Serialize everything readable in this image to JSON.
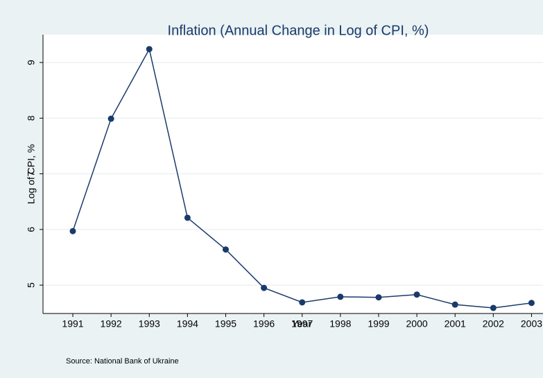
{
  "chart_data": {
    "type": "line",
    "title": "Inflation (Annual Change in Log of CPI, %)",
    "x_label": "Year",
    "y_label": "Log of CPI, %",
    "note": "Source: National Bank of Ukraine",
    "x": [
      1991,
      1992,
      1993,
      1994,
      1995,
      1996,
      1997,
      1998,
      1999,
      2000,
      2001,
      2002,
      2003
    ],
    "series": [
      {
        "color": "#1a3a6b",
        "values": [
          5.97,
          7.99,
          9.24,
          6.21,
          5.64,
          4.95,
          4.69,
          4.79,
          4.78,
          4.83,
          4.65,
          4.59,
          4.68
        ]
      }
    ],
    "xlim": [
      1990.22,
      2003.3
    ],
    "xticks": [
      1991,
      1992,
      1993,
      1994,
      1995,
      1996,
      1997,
      1998,
      1999,
      2000,
      2001,
      2002,
      2003
    ],
    "ylim": [
      4.49,
      9.5
    ],
    "yticks": [
      5,
      6,
      7,
      8,
      9
    ],
    "grid": true
  }
}
